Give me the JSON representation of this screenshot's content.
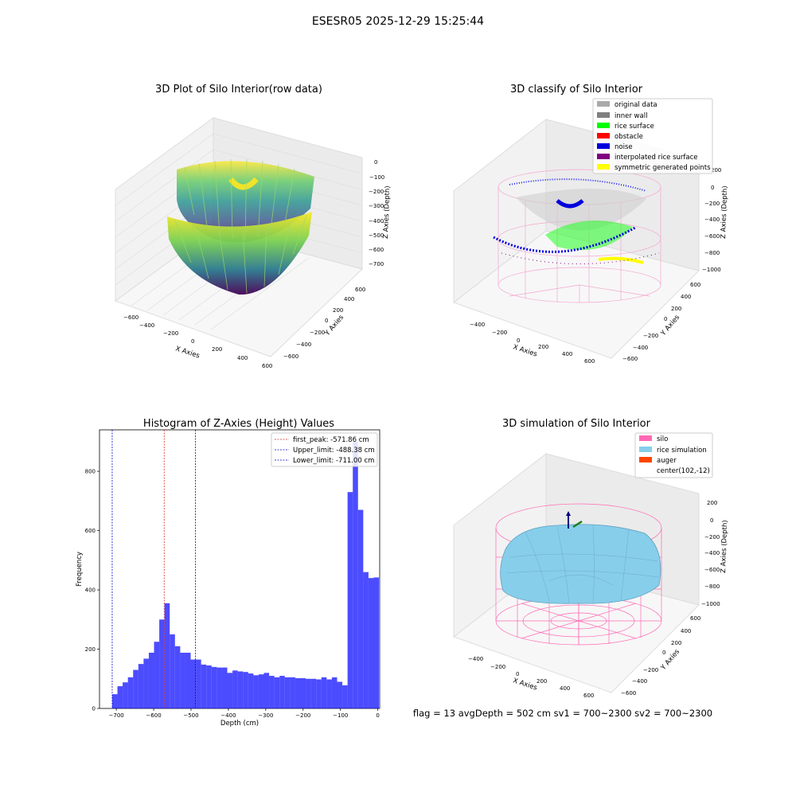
{
  "figure_title": "ESESR05 2025-12-29 15:25:44",
  "footer": "flag = 13   avgDepth = 502 cm  sv1 = 700~2300  sv2 = 700~2300",
  "colors": {
    "silo": "#ff69b4",
    "rice": "#87ceeb",
    "auger": "#ff4500",
    "hist": "#0000ff",
    "first_peak": "#d62728",
    "limits": "#0000cd",
    "original": "#aaaaaa",
    "inner_wall": "#808080",
    "rice_surface": "#00ff00",
    "obstacle": "#ff0000",
    "noise": "#0000dd",
    "interpolated": "#800080",
    "symmetric": "#ffff00"
  },
  "chart_data": [
    {
      "type": "scatter",
      "projection": "3d",
      "title": "3D Plot of Silo Interior(row data)",
      "xlabel": "X Axies",
      "ylabel": "Y Axies",
      "zlabel": "Z Axies (Depth)",
      "xticks": [
        "−600",
        "−400",
        "−200",
        "0",
        "200",
        "400",
        "600"
      ],
      "yticks": [
        "−600",
        "−400",
        "−200",
        "0",
        "200",
        "400",
        "600"
      ],
      "zticks": [
        "0",
        "−100",
        "−200",
        "−300",
        "−400",
        "−500",
        "−600",
        "−700"
      ],
      "xlim": [
        -600,
        600
      ],
      "ylim": [
        -600,
        600
      ],
      "zlim": [
        -720,
        0
      ],
      "colormap": "viridis"
    },
    {
      "type": "scatter",
      "projection": "3d",
      "title": "3D classify of Silo Interior",
      "xlabel": "X Axies",
      "ylabel": "Y Axies",
      "zlabel": "Z Axies (Depth)",
      "xticks": [
        "−400",
        "−200",
        "0",
        "200",
        "400",
        "600"
      ],
      "yticks": [
        "−600",
        "−400",
        "−200",
        "0",
        "200",
        "400",
        "600"
      ],
      "zticks": [
        "200",
        "0",
        "−200",
        "−400",
        "−600",
        "−800",
        "−1000"
      ],
      "xlim": [
        -500,
        700
      ],
      "ylim": [
        -600,
        600
      ],
      "zlim": [
        -1000,
        200
      ],
      "legend": [
        "original data",
        "inner wall",
        "rice surface",
        "obstacle",
        "noise",
        "interpolated rice surface",
        "symmetric generated points"
      ],
      "legend_position": "upper-right"
    },
    {
      "type": "bar",
      "title": "Histogram of Z-Axies (Height) Values",
      "xlabel": "Depth (cm)",
      "ylabel": "Frequency",
      "xlim": [
        -745,
        5
      ],
      "ylim": [
        0,
        940
      ],
      "xticks": [
        -700,
        -600,
        -500,
        -400,
        -300,
        -200,
        -100,
        0
      ],
      "xtick_labels": [
        "−700",
        "−600",
        "−500",
        "−400",
        "−300",
        "−200",
        "−100",
        "0"
      ],
      "yticks": [
        0,
        200,
        400,
        600,
        800
      ],
      "yticks_labels": [
        "0",
        "200",
        "400",
        "600",
        "800"
      ],
      "bin_start": -711,
      "bin_width": 14.0,
      "values": [
        48,
        75,
        88,
        105,
        130,
        150,
        168,
        188,
        225,
        300,
        355,
        250,
        210,
        188,
        188,
        165,
        165,
        148,
        145,
        140,
        138,
        138,
        120,
        128,
        125,
        123,
        118,
        112,
        115,
        120,
        110,
        105,
        110,
        105,
        105,
        102,
        102,
        100,
        100,
        98,
        105,
        98,
        105,
        90,
        78,
        730,
        900,
        670,
        460,
        440,
        442
      ],
      "vlines": [
        {
          "x": -571.86,
          "label": "first_peak: -571.86 cm",
          "color": "#d62728"
        },
        {
          "x": -488.38,
          "label": "Upper_limit: -488.38 cm",
          "color": "#0000cd"
        },
        {
          "x": -711.0,
          "label": "Lower_limit: -711.00 cm",
          "color": "#0000cd"
        }
      ],
      "legend_position": "upper-right"
    },
    {
      "type": "surface",
      "projection": "3d",
      "title": "3D simulation of Silo Interior",
      "xlabel": "X Axies",
      "ylabel": "Y Axies",
      "zlabel": "Z Axies (Depth)",
      "xticks": [
        "−400",
        "−200",
        "0",
        "200",
        "400",
        "600"
      ],
      "yticks": [
        "−600",
        "−400",
        "−200",
        "0",
        "200",
        "400",
        "600"
      ],
      "zticks": [
        "200",
        "0",
        "−200",
        "−400",
        "−600",
        "−800",
        "−1000"
      ],
      "legend": [
        "silo",
        "rice simulation",
        "auger",
        "center(102,-12)"
      ],
      "legend_position": "upper-right"
    }
  ]
}
